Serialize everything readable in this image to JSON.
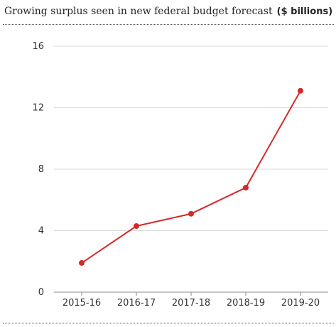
{
  "chart_data": {
    "type": "line",
    "title": "Growing surplus seen in new federal budget forecast",
    "subtitle": "($ billions)",
    "categories": [
      "2015-16",
      "2016-17",
      "2017-18",
      "2018-19",
      "2019-20"
    ],
    "series": [
      {
        "values": [
          1.9,
          4.3,
          5.1,
          6.8,
          13.1
        ]
      }
    ],
    "ylim": [
      0,
      16
    ],
    "yticks": [
      0,
      4,
      8,
      12,
      16
    ],
    "grid": true,
    "colors": {
      "line": "#d42a2a",
      "grid": "#d9d9d9"
    }
  }
}
